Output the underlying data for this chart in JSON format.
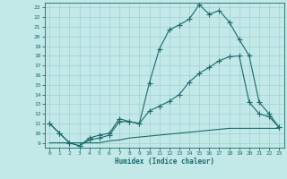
{
  "xlabel": "Humidex (Indice chaleur)",
  "background_color": "#c2e8e8",
  "grid_color": "#a8d4d4",
  "line_color": "#1a6b6b",
  "xlim": [
    -0.5,
    23.5
  ],
  "ylim": [
    8.5,
    23.5
  ],
  "yticks": [
    9,
    10,
    11,
    12,
    13,
    14,
    15,
    16,
    17,
    18,
    19,
    20,
    21,
    22,
    23
  ],
  "xticks": [
    0,
    1,
    2,
    3,
    4,
    5,
    6,
    7,
    8,
    9,
    10,
    11,
    12,
    13,
    14,
    15,
    16,
    17,
    18,
    19,
    20,
    21,
    22,
    23
  ],
  "line1_x": [
    0,
    1,
    2,
    3,
    4,
    5,
    6,
    7,
    8,
    9,
    10,
    11,
    12,
    13,
    14,
    15,
    16,
    17,
    18,
    19,
    20,
    21,
    22,
    23
  ],
  "line1_y": [
    11,
    10,
    9,
    8.7,
    9.3,
    9.5,
    9.8,
    11.2,
    11.2,
    11.0,
    15.2,
    18.7,
    20.7,
    21.2,
    21.8,
    23.3,
    22.3,
    22.7,
    21.5,
    19.7,
    18.0,
    13.2,
    12.0,
    10.6
  ],
  "line2_x": [
    0,
    1,
    2,
    3,
    4,
    5,
    6,
    7,
    8,
    9,
    10,
    11,
    12,
    13,
    14,
    15,
    16,
    17,
    18,
    19,
    20,
    21,
    22,
    23
  ],
  "line2_y": [
    11,
    10,
    9,
    8.7,
    9.5,
    9.8,
    10.0,
    11.5,
    11.2,
    11.0,
    12.3,
    12.8,
    13.3,
    14.0,
    15.3,
    16.2,
    16.8,
    17.5,
    17.9,
    18.0,
    13.2,
    12.0,
    11.7,
    10.6
  ],
  "line3_x": [
    0,
    1,
    2,
    3,
    4,
    5,
    6,
    7,
    8,
    9,
    10,
    11,
    12,
    13,
    14,
    15,
    16,
    17,
    18,
    19,
    20,
    21,
    22,
    23
  ],
  "line3_y": [
    9.0,
    9.0,
    9.0,
    9.0,
    9.0,
    9.0,
    9.2,
    9.3,
    9.5,
    9.6,
    9.7,
    9.8,
    9.9,
    10.0,
    10.1,
    10.2,
    10.3,
    10.4,
    10.5,
    10.5,
    10.5,
    10.5,
    10.5,
    10.5
  ]
}
